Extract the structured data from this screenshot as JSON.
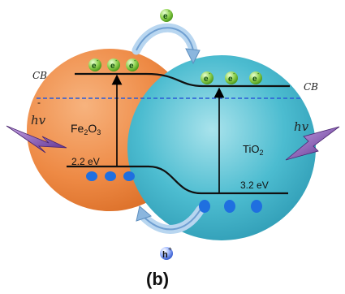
{
  "labels": {
    "cb_left": "CB",
    "cb_right": "CB",
    "hv_left": "hv",
    "hv_right": "hv",
    "fe2o3_main": "Fe",
    "fe2o3_sub1": "2",
    "fe2o3_mid": "O",
    "fe2o3_sub2": "3",
    "tio2_main": "TiO",
    "tio2_sub": "2",
    "fe2o3_gap": "2.2 eV",
    "tio2_gap": "3.2 eV",
    "minus": "-",
    "electron": "e",
    "electron_charge": "-",
    "hole": "h",
    "hole_charge": "+",
    "caption": "(b)"
  },
  "colors": {
    "fe2o3_sphere": "#ee8a45",
    "tio2_sphere": "#3cb3c8",
    "electron_ball": "#8fd14f",
    "hole_dot": "#1f6fe0",
    "fermi_line": "#2a5bd7",
    "transfer_arrow": "#6f9fd1",
    "lightning": "#7b4aa8"
  },
  "icons": [
    "electron-icon",
    "hole-icon",
    "lightning-icon",
    "transfer-arrow-icon"
  ]
}
